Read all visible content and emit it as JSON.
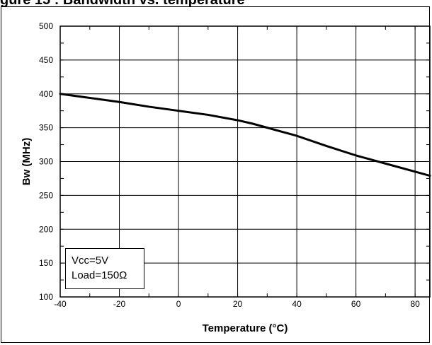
{
  "figure_title": "gure 15 : Bandwidth vs. temperature",
  "annotation": {
    "line1": "Vcc=5V",
    "line2": "Load=150Ω"
  },
  "chart_data": {
    "type": "line",
    "title": "",
    "xlabel": "Temperature (°C)",
    "ylabel": "Bw  (MHz)",
    "xlim": [
      -40,
      85
    ],
    "ylim": [
      100,
      500
    ],
    "xticks": [
      -40,
      -20,
      0,
      20,
      40,
      60,
      80
    ],
    "yticks": [
      100,
      150,
      200,
      250,
      300,
      350,
      400,
      450,
      500
    ],
    "grid": true,
    "series": [
      {
        "x": [
          -40,
          -30,
          -20,
          -10,
          0,
          10,
          20,
          25,
          30,
          40,
          50,
          60,
          70,
          80,
          85
        ],
        "y": [
          400,
          394,
          388,
          381,
          375,
          369,
          361,
          356,
          350,
          338,
          323,
          309,
          297,
          285,
          279
        ]
      }
    ]
  }
}
